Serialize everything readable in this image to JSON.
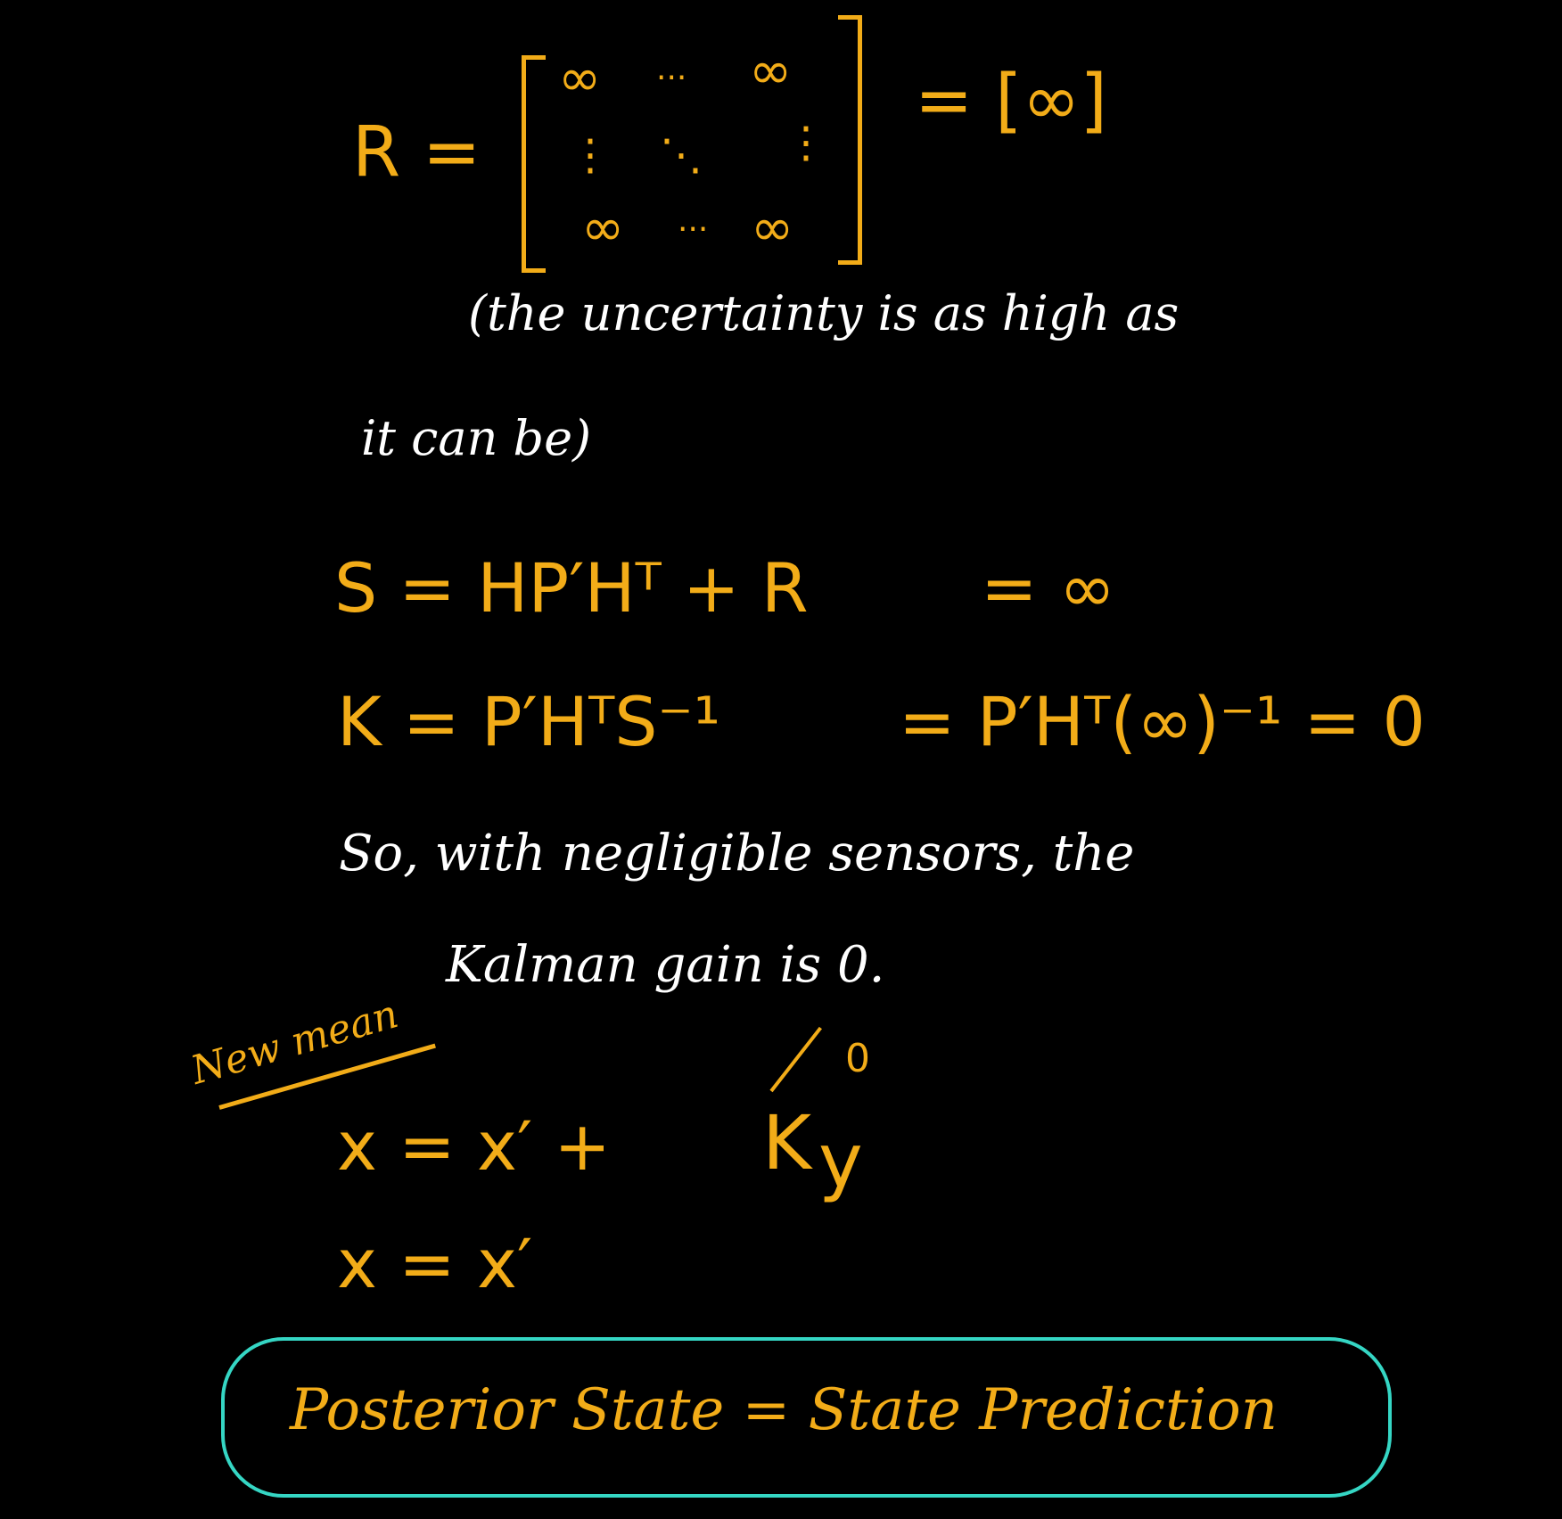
{
  "equation_r": {
    "lhs": "R =",
    "matrix": {
      "top_left": "∞",
      "top_dots": "···",
      "top_right": "∞",
      "mid_left": "⋮",
      "mid_center": "⋱",
      "mid_right": "⋮",
      "bottom_left": "∞",
      "bottom_dots": "···",
      "bottom_right": "∞"
    },
    "rhs": "= [∞]"
  },
  "note_uncertainty_line1": "(the uncertainty is as high as",
  "note_uncertainty_line2": "it can be)",
  "equation_s": {
    "lhs": "S = HP′Hᵀ + R",
    "rhs": "= ∞"
  },
  "equation_k": {
    "lhs": "K = P′HᵀS⁻¹",
    "rhs": "= P′Hᵀ(∞)⁻¹ = 0"
  },
  "conclusion_line1": "So, with negligible sensors, the",
  "conclusion_line2": "Kalman gain is 0.",
  "new_mean_label": "New mean",
  "equation_x1": {
    "lhs": "x = x′ +",
    "k": "K",
    "y": "y",
    "k_value": "0"
  },
  "equation_x2": "x = x′",
  "final_statement": "Posterior State = State Prediction",
  "colors": {
    "background": "#000000",
    "ink_orange": "#f2ac18",
    "ink_white": "#ffffff",
    "box_teal": "#35d6c4"
  }
}
